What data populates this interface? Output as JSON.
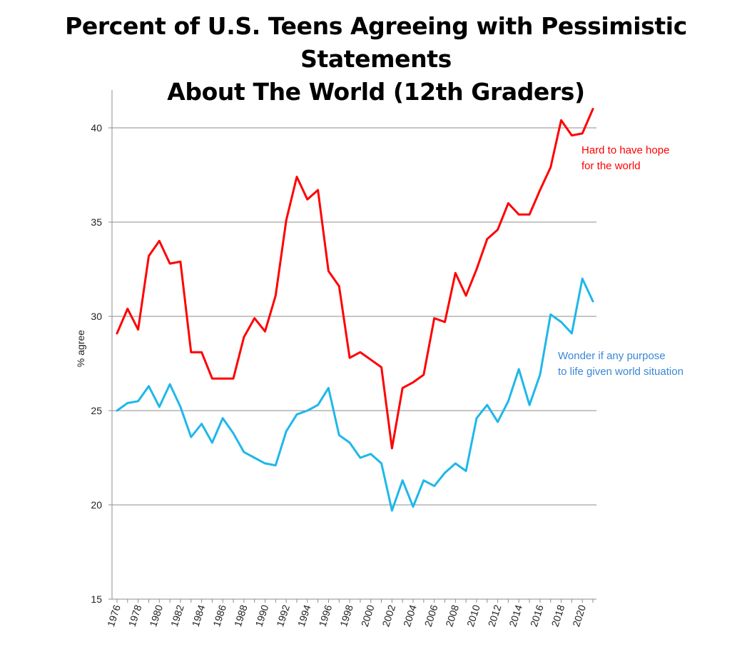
{
  "title_line1": "Percent of U.S. Teens Agreeing with Pessimistic Statements",
  "title_line2": "About The World (12th Graders)",
  "chart_data": {
    "type": "line",
    "title": "Percent of U.S. Teens Agreeing with Pessimistic Statements About The World (12th Graders)",
    "xlabel": "",
    "ylabel": "% agree",
    "ylim": [
      15,
      42
    ],
    "yticks": [
      15,
      20,
      25,
      30,
      35,
      40
    ],
    "grid": "horizontal",
    "x": [
      1976,
      1977,
      1978,
      1979,
      1980,
      1981,
      1982,
      1983,
      1984,
      1985,
      1986,
      1987,
      1988,
      1989,
      1990,
      1991,
      1992,
      1993,
      1994,
      1995,
      1996,
      1997,
      1998,
      1999,
      2000,
      2001,
      2002,
      2003,
      2004,
      2005,
      2006,
      2007,
      2008,
      2009,
      2010,
      2011,
      2012,
      2013,
      2014,
      2015,
      2016,
      2017,
      2018,
      2019,
      2020,
      2021
    ],
    "xticks": [
      1976,
      1978,
      1980,
      1982,
      1984,
      1986,
      1988,
      1990,
      1992,
      1994,
      1996,
      1998,
      2000,
      2002,
      2004,
      2006,
      2008,
      2010,
      2012,
      2014,
      2016,
      2018,
      2020
    ],
    "series": [
      {
        "name": "Hard to have hope for the world",
        "label_lines": [
          "Hard to have hope",
          "for the world"
        ],
        "color": "#ff0000",
        "values": [
          29.1,
          30.4,
          29.3,
          33.2,
          34.0,
          32.8,
          32.9,
          28.1,
          28.1,
          26.7,
          26.7,
          26.7,
          28.9,
          29.9,
          29.2,
          31.1,
          35.1,
          37.4,
          36.2,
          36.7,
          32.4,
          31.6,
          27.8,
          28.1,
          27.7,
          27.3,
          23.0,
          26.2,
          26.5,
          26.9,
          29.9,
          29.7,
          32.3,
          31.1,
          32.5,
          34.1,
          34.6,
          36.0,
          35.4,
          35.4,
          36.7,
          37.9,
          40.4,
          39.6,
          39.7,
          41.0
        ]
      },
      {
        "name": "Wonder if any purpose to life given world situation",
        "label_lines": [
          "Wonder if any purpose",
          "to life given world situation"
        ],
        "color": "#1fb7ea",
        "label_color": "#3a87d6",
        "values": [
          25.0,
          25.4,
          25.5,
          26.3,
          25.2,
          26.4,
          25.2,
          23.6,
          24.3,
          23.3,
          24.6,
          23.8,
          22.8,
          22.5,
          22.2,
          22.1,
          23.9,
          24.8,
          25.0,
          25.3,
          26.2,
          23.7,
          23.3,
          22.5,
          22.7,
          22.2,
          19.7,
          21.3,
          19.9,
          21.3,
          21.0,
          21.7,
          22.2,
          21.8,
          24.6,
          25.3,
          24.4,
          25.5,
          27.2,
          25.3,
          26.9,
          30.1,
          29.7,
          29.1,
          32.0,
          30.8
        ]
      }
    ]
  }
}
